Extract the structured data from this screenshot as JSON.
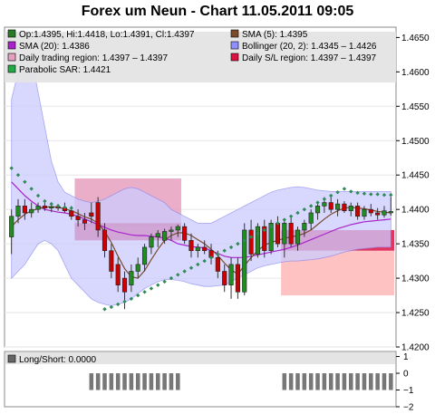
{
  "chart_data": {
    "title": "Forex um Neun - Chart 11.05.2011 09:05",
    "type": "candlestick",
    "main_panel": {
      "y_ticks": [
        "1.4200",
        "1.4250",
        "1.4300",
        "1.4350",
        "1.4400",
        "1.4450",
        "1.4500",
        "1.4550",
        "1.4600",
        "1.4650"
      ],
      "ylim": [
        1.42,
        1.4665
      ],
      "legend": [
        {
          "label": "Op:1.4395, Hi:1.4418, Lo:1.4391, Cl:1.4397",
          "color": "#2a7a2a"
        },
        {
          "label": "SMA (5): 1.4395",
          "color": "#7a4a2a"
        },
        {
          "label": "SMA (20): 1.4386",
          "color": "#aa22cc"
        },
        {
          "label": "Bollinger (20, 2): 1.4345 – 1.4426",
          "color": "#8f8fff"
        },
        {
          "label": "Daily trading region: 1.4397 – 1.4397",
          "color": "#e8a0c0"
        },
        {
          "label": "Daily S/L region: 1.4397 – 1.4397",
          "color": "#dd1144"
        },
        {
          "label": "Parabolic SAR: 1.4421",
          "color": "#22aa44"
        }
      ],
      "colors": {
        "up": "#228b22",
        "down": "#cc0000",
        "boll_fill": "#ccccff",
        "boll_line": "#8888ee",
        "sma5": "#7a4a2a",
        "sma20": "#aa22cc",
        "sar": "#2e8b57",
        "trade_region": "#e8a0c0",
        "sl_region": "#dd1144",
        "short_region": "#ffbbbb"
      },
      "candles": [
        [
          1.436,
          1.44,
          1.4335,
          1.439
        ],
        [
          1.439,
          1.4415,
          1.438,
          1.4405
        ],
        [
          1.4405,
          1.4415,
          1.4385,
          1.4395
        ],
        [
          1.4395,
          1.441,
          1.4388,
          1.44
        ],
        [
          1.44,
          1.441,
          1.4395,
          1.4405
        ],
        [
          1.4405,
          1.4412,
          1.4398,
          1.4402
        ],
        [
          1.4402,
          1.441,
          1.4396,
          1.4404
        ],
        [
          1.4404,
          1.4408,
          1.4398,
          1.4402
        ],
        [
          1.4402,
          1.441,
          1.4395,
          1.4398
        ],
        [
          1.4398,
          1.4405,
          1.4385,
          1.439
        ],
        [
          1.439,
          1.44,
          1.4375,
          1.4385
        ],
        [
          1.4385,
          1.4395,
          1.437,
          1.438
        ],
        [
          1.4395,
          1.441,
          1.438,
          1.439
        ],
        [
          1.441,
          1.4418,
          1.436,
          1.437
        ],
        [
          1.437,
          1.438,
          1.433,
          1.434
        ],
        [
          1.434,
          1.435,
          1.43,
          1.431
        ],
        [
          1.432,
          1.433,
          1.428,
          1.429
        ],
        [
          1.43,
          1.431,
          1.4255,
          1.428
        ],
        [
          1.429,
          1.432,
          1.428,
          1.431
        ],
        [
          1.431,
          1.433,
          1.43,
          1.432
        ],
        [
          1.432,
          1.435,
          1.431,
          1.4345
        ],
        [
          1.4345,
          1.4365,
          1.4335,
          1.436
        ],
        [
          1.436,
          1.437,
          1.4345,
          1.4365
        ],
        [
          1.4355,
          1.4372,
          1.435,
          1.4368
        ],
        [
          1.4368,
          1.4375,
          1.4355,
          1.437
        ],
        [
          1.437,
          1.4378,
          1.436,
          1.4375
        ],
        [
          1.4375,
          1.438,
          1.435,
          1.4355
        ],
        [
          1.4355,
          1.4365,
          1.433,
          1.434
        ],
        [
          1.434,
          1.435,
          1.433,
          1.4345
        ],
        [
          1.4345,
          1.4355,
          1.4335,
          1.434
        ],
        [
          1.434,
          1.435,
          1.432,
          1.433
        ],
        [
          1.433,
          1.434,
          1.43,
          1.431
        ],
        [
          1.431,
          1.432,
          1.428,
          1.429
        ],
        [
          1.429,
          1.433,
          1.427,
          1.432
        ],
        [
          1.432,
          1.433,
          1.427,
          1.428
        ],
        [
          1.428,
          1.438,
          1.4275,
          1.437
        ],
        [
          1.437,
          1.4385,
          1.4325,
          1.4335
        ],
        [
          1.4335,
          1.438,
          1.433,
          1.4375
        ],
        [
          1.4375,
          1.4385,
          1.433,
          1.434
        ],
        [
          1.434,
          1.4385,
          1.4335,
          1.438
        ],
        [
          1.438,
          1.439,
          1.4345,
          1.435
        ],
        [
          1.435,
          1.4385,
          1.433,
          1.438
        ],
        [
          1.438,
          1.4388,
          1.4345,
          1.435
        ],
        [
          1.435,
          1.4375,
          1.434,
          1.437
        ],
        [
          1.437,
          1.4385,
          1.436,
          1.438
        ],
        [
          1.438,
          1.44,
          1.437,
          1.4395
        ],
        [
          1.4395,
          1.4412,
          1.4385,
          1.4405
        ],
        [
          1.4405,
          1.4418,
          1.4395,
          1.441
        ],
        [
          1.441,
          1.4418,
          1.4395,
          1.44
        ],
        [
          1.44,
          1.4415,
          1.439,
          1.4408
        ],
        [
          1.4408,
          1.4412,
          1.4395,
          1.4398
        ],
        [
          1.4398,
          1.441,
          1.439,
          1.4405
        ],
        [
          1.4405,
          1.441,
          1.4385,
          1.439
        ],
        [
          1.439,
          1.4405,
          1.4385,
          1.44
        ],
        [
          1.44,
          1.4408,
          1.439,
          1.4395
        ],
        [
          1.4395,
          1.4402,
          1.4385,
          1.4392
        ],
        [
          1.4392,
          1.4405,
          1.4388,
          1.4398
        ],
        [
          1.4395,
          1.4418,
          1.4391,
          1.4397
        ]
      ],
      "sar": [
        1.446,
        1.445,
        1.444,
        1.443,
        1.442,
        1.4412,
        1.4408,
        1.4405,
        1.4403,
        1.4402,
        null,
        null,
        null,
        null,
        1.4255,
        1.4258,
        1.4262,
        1.4266,
        1.427,
        1.4275,
        1.428,
        1.4285,
        1.429,
        1.4295,
        1.43,
        1.4305,
        1.431,
        1.4315,
        1.432,
        1.4325,
        1.433,
        1.4335,
        1.434,
        1.4345,
        1.435,
        1.4355,
        1.436,
        1.4365,
        1.437,
        1.4375,
        1.438,
        1.4385,
        1.439,
        1.4395,
        1.44,
        1.4405,
        1.441,
        1.4415,
        1.442,
        1.4425,
        1.443,
        1.4426,
        1.4424,
        1.4423,
        1.4422,
        1.4422,
        1.4421,
        1.4421
      ],
      "boll_upper": [
        1.456,
        1.46,
        1.463,
        1.462,
        1.457,
        1.452,
        1.447,
        1.444,
        1.4425,
        1.442,
        1.4415,
        1.4412,
        1.441,
        1.4412,
        1.4415,
        1.442,
        1.4425,
        1.443,
        1.4432,
        1.443,
        1.4425,
        1.442,
        1.4415,
        1.441,
        1.44,
        1.4395,
        1.439,
        1.4385,
        1.438,
        1.438,
        1.438,
        1.4385,
        1.439,
        1.4395,
        1.44,
        1.4405,
        1.441,
        1.4415,
        1.442,
        1.4425,
        1.4428,
        1.443,
        1.4432,
        1.4433,
        1.4432,
        1.443,
        1.4428,
        1.4427,
        1.4426,
        1.4426,
        1.4426,
        1.4426,
        1.4426,
        1.4426,
        1.4426,
        1.4426,
        1.4426,
        1.4426
      ],
      "boll_lower": [
        1.43,
        1.431,
        1.432,
        1.4335,
        1.435,
        1.4355,
        1.435,
        1.434,
        1.432,
        1.43,
        1.429,
        1.428,
        1.427,
        1.4265,
        1.4262,
        1.426,
        1.4262,
        1.4265,
        1.427,
        1.4278,
        1.4285,
        1.429,
        1.4295,
        1.4298,
        1.4298,
        1.4297,
        1.4295,
        1.4292,
        1.429,
        1.4288,
        1.4288,
        1.4289,
        1.429,
        1.4295,
        1.43,
        1.4305,
        1.431,
        1.4315,
        1.4318,
        1.432,
        1.4322,
        1.4324,
        1.4325,
        1.4325,
        1.4326,
        1.4327,
        1.4328,
        1.433,
        1.4332,
        1.4335,
        1.4338,
        1.434,
        1.4342,
        1.4343,
        1.4344,
        1.4345,
        1.4345,
        1.4345
      ],
      "sma20": [
        1.444,
        1.443,
        1.442,
        1.4412,
        1.4405,
        1.44,
        1.4398,
        1.4396,
        1.4395,
        1.4393,
        1.439,
        1.4386,
        1.4382,
        1.4378,
        1.4374,
        1.437,
        1.4367,
        1.4365,
        1.4363,
        1.4362,
        1.4362,
        1.4361,
        1.436,
        1.4358,
        1.4355,
        1.435,
        1.4348,
        1.4346,
        1.4345,
        1.4344,
        1.434,
        1.4336,
        1.4332,
        1.433,
        1.433,
        1.433,
        1.4332,
        1.4334,
        1.4336,
        1.4338,
        1.434,
        1.4342,
        1.4345,
        1.4348,
        1.4352,
        1.4356,
        1.436,
        1.4364,
        1.4368,
        1.4372,
        1.4375,
        1.4378,
        1.438,
        1.4382,
        1.4383,
        1.4384,
        1.4385,
        1.4386
      ],
      "sma5": [
        1.4375,
        1.4385,
        1.4393,
        1.4398,
        1.4401,
        1.4403,
        1.4404,
        1.4403,
        1.4401,
        1.4398,
        1.4394,
        1.4389,
        1.4386,
        1.438,
        1.4368,
        1.4352,
        1.4332,
        1.4314,
        1.4302,
        1.43,
        1.4311,
        1.4327,
        1.4342,
        1.4355,
        1.4362,
        1.4366,
        1.4366,
        1.4362,
        1.4356,
        1.435,
        1.4342,
        1.4333,
        1.4322,
        1.4312,
        1.4306,
        1.4318,
        1.433,
        1.434,
        1.4348,
        1.4352,
        1.4355,
        1.4358,
        1.436,
        1.4362,
        1.4365,
        1.437,
        1.4378,
        1.4386,
        1.4393,
        1.4398,
        1.4402,
        1.4403,
        1.4402,
        1.4401,
        1.4399,
        1.4397,
        1.4396,
        1.4395
      ],
      "trade_region": [
        {
          "start": 10,
          "end": 26,
          "lo": 1.4375,
          "hi": 1.4445
        }
      ],
      "sl_region": [
        {
          "start": 10,
          "end": 26,
          "lo": 1.4355,
          "hi": 1.438
        },
        {
          "start": 41,
          "end": 58,
          "lo": 1.434,
          "hi": 1.437
        }
      ],
      "short_region": [
        {
          "start": 41,
          "end": 58,
          "lo": 1.4275,
          "hi": 1.434
        }
      ],
      "x_count": 58
    },
    "sub_panel": {
      "legend": [
        {
          "label": "Long/Short: 0.0000",
          "color": "#666666"
        }
      ],
      "y_ticks": [
        "1",
        "0",
        "−1",
        "−2"
      ],
      "ylim": [
        -2,
        1.3
      ],
      "bars": [
        {
          "start": 12,
          "end": 26,
          "value": -1
        },
        {
          "start": 41,
          "end": 58,
          "value": -1
        }
      ],
      "bar_color": "#777777"
    }
  }
}
